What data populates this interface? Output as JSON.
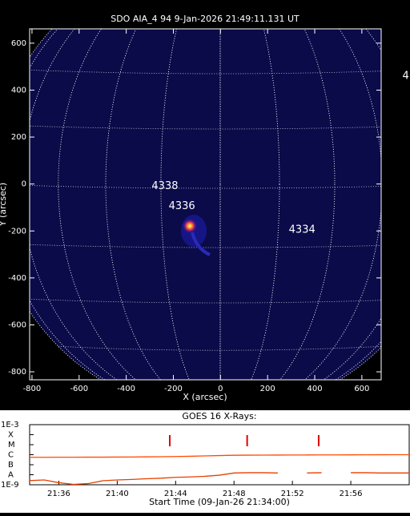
{
  "chart_data": [
    {
      "type": "image",
      "title": "SDO AIA_4 94  9-Jan-2026 21:49:11.131 UT",
      "x_label": "X (arcsec)",
      "y_label": "Y (arcsec)",
      "xlim": [
        -810,
        682
      ],
      "ylim": [
        -834,
        661
      ],
      "xticks": [
        -800,
        -600,
        -400,
        -200,
        0,
        200,
        400,
        600
      ],
      "yticks": [
        -800,
        -600,
        -400,
        -200,
        0,
        200,
        400,
        600
      ],
      "annotations": [
        {
          "text": "4338",
          "x": -292,
          "y": -10
        },
        {
          "text": "4336",
          "x": -220,
          "y": -95
        },
        {
          "text": "4334",
          "x": 290,
          "y": -195
        },
        {
          "text": "4",
          "x": 772,
          "y": 460
        }
      ]
    },
    {
      "type": "line",
      "title": "GOES 16 X-Rays:",
      "x_label": "Start Time (09-Jan-26 21:34:00)",
      "log_y": true,
      "xlim": [
        0,
        26
      ],
      "ylim": [
        1e-09,
        0.001
      ],
      "xticks": [
        {
          "value": 2,
          "label": "21:36"
        },
        {
          "value": 6,
          "label": "21:40"
        },
        {
          "value": 10,
          "label": "21:44"
        },
        {
          "value": 14,
          "label": "21:48"
        },
        {
          "value": 18,
          "label": "21:52"
        },
        {
          "value": 22,
          "label": "21:56"
        }
      ],
      "yticks": [
        {
          "value": 0.001,
          "label": "1E-3"
        },
        {
          "value": 0.0001,
          "label": "X"
        },
        {
          "value": 1e-05,
          "label": "M"
        },
        {
          "value": 1e-06,
          "label": "C"
        },
        {
          "value": 1e-07,
          "label": "B"
        },
        {
          "value": 1e-08,
          "label": "A"
        },
        {
          "value": 1e-09,
          "label": "1E-9"
        }
      ],
      "events": [
        9.6,
        14.9,
        19.8
      ],
      "event_color": "#e00000",
      "x": [
        0,
        1,
        2,
        3,
        4,
        5,
        6,
        7,
        8,
        9,
        10,
        11,
        12,
        13,
        14,
        15,
        16,
        17,
        18,
        19,
        20,
        21,
        22,
        23,
        24,
        25,
        26
      ],
      "series": [
        {
          "name": "long",
          "color": "#ff4a00",
          "values": [
            5.5e-07,
            5.5e-07,
            5.6e-07,
            5.6e-07,
            5.7e-07,
            5.7e-07,
            5.8e-07,
            5.9e-07,
            6.1e-07,
            6.3e-07,
            6.6e-07,
            7e-07,
            7.6e-07,
            8.2e-07,
            8.8e-07,
            9e-07,
            9.1e-07,
            9.2e-07,
            9.3e-07,
            9.4e-07,
            9.5e-07,
            9.6e-07,
            9.7e-07,
            9.8e-07,
            9.9e-07,
            1e-06,
            1e-06
          ]
        },
        {
          "name": "short",
          "color": "#e84000",
          "values": [
            2.6e-09,
            3e-09,
            1.6e-09,
            1.1e-09,
            1.3e-09,
            2.5e-09,
            3e-09,
            3.4e-09,
            4e-09,
            4.5e-09,
            5.5e-09,
            6e-09,
            7e-09,
            9e-09,
            1.5e-08,
            1.6e-08,
            1.6e-08,
            1.5e-08,
            null,
            1.5e-08,
            1.6e-08,
            null,
            1.6e-08,
            1.6e-08,
            1.5e-08,
            1.5e-08,
            1.5e-08
          ]
        }
      ]
    }
  ]
}
